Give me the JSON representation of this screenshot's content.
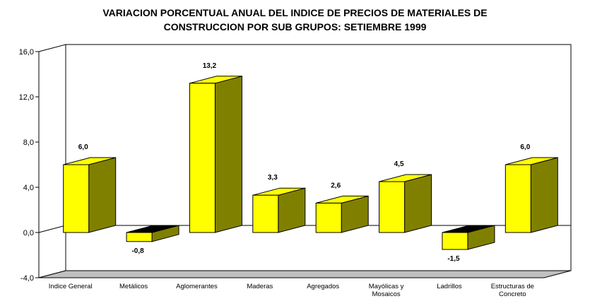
{
  "chart_data": {
    "type": "bar",
    "title_lines": [
      "VARIACION PORCENTUAL ANUAL DEL INDICE DE PRECIOS DE MATERIALES DE",
      "CONSTRUCCION POR SUB GRUPOS: SETIEMBRE 1999"
    ],
    "categories": [
      [
        "Indice General"
      ],
      [
        "Metálicos"
      ],
      [
        "Aglomerantes"
      ],
      [
        "Maderas"
      ],
      [
        "Agregados"
      ],
      [
        "Mayólicas y",
        "Mosaicos"
      ],
      [
        "Ladrillos"
      ],
      [
        "Estructuras de",
        "Concreto"
      ]
    ],
    "values": [
      6.0,
      -0.8,
      13.2,
      3.3,
      2.6,
      4.5,
      -1.5,
      6.0
    ],
    "value_labels": [
      "6,0",
      "-0,8",
      "13,2",
      "3,3",
      "2,6",
      "4,5",
      "-1,5",
      "6,0"
    ],
    "y_ticks": [
      {
        "value": 16,
        "label": "16,0"
      },
      {
        "value": 12,
        "label": "12,0"
      },
      {
        "value": 8,
        "label": "8,0"
      },
      {
        "value": 4,
        "label": "4,0"
      },
      {
        "value": 0,
        "label": "0,0"
      },
      {
        "value": -4,
        "label": "-4,0"
      }
    ],
    "ylim": [
      -4,
      16
    ],
    "style": "3d-bar",
    "colors": {
      "front": "#ffff00",
      "side": "#808000",
      "top_positive": "#ffff00",
      "top_negative": "#000000",
      "floor": "#c0c0c0",
      "background": "#ffffff"
    },
    "grid": false,
    "legend": "none"
  }
}
